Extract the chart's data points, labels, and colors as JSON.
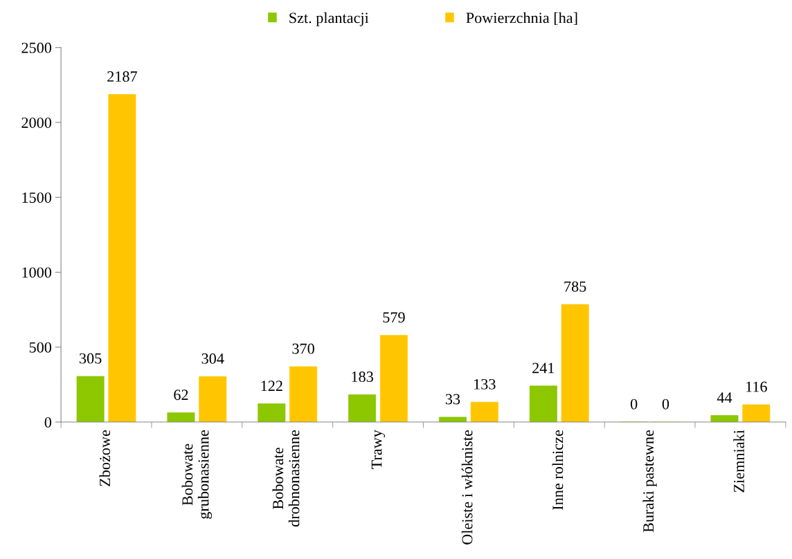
{
  "chart_data": {
    "type": "bar",
    "categories": [
      "Zbożowe",
      "Bobowate\ngrubonasienne",
      "Bobowate\ndrobnonasienne",
      "Trawy",
      "Oleiste i włókniste",
      "Inne rolnicze",
      "Buraki pastewne",
      "Ziemniaki"
    ],
    "series": [
      {
        "name": "Szt. plantacji",
        "color": "#8cc700",
        "values": [
          305,
          62,
          122,
          183,
          33,
          241,
          0,
          44
        ]
      },
      {
        "name": "Powierzchnia [ha]",
        "color": "#ffc600",
        "values": [
          2187,
          304,
          370,
          579,
          133,
          785,
          0,
          116
        ]
      }
    ],
    "ylim": [
      0,
      2500
    ],
    "yticks": [
      0,
      500,
      1000,
      1500,
      2000,
      2500
    ],
    "data_labels": true,
    "grid": false,
    "legend": "top"
  }
}
